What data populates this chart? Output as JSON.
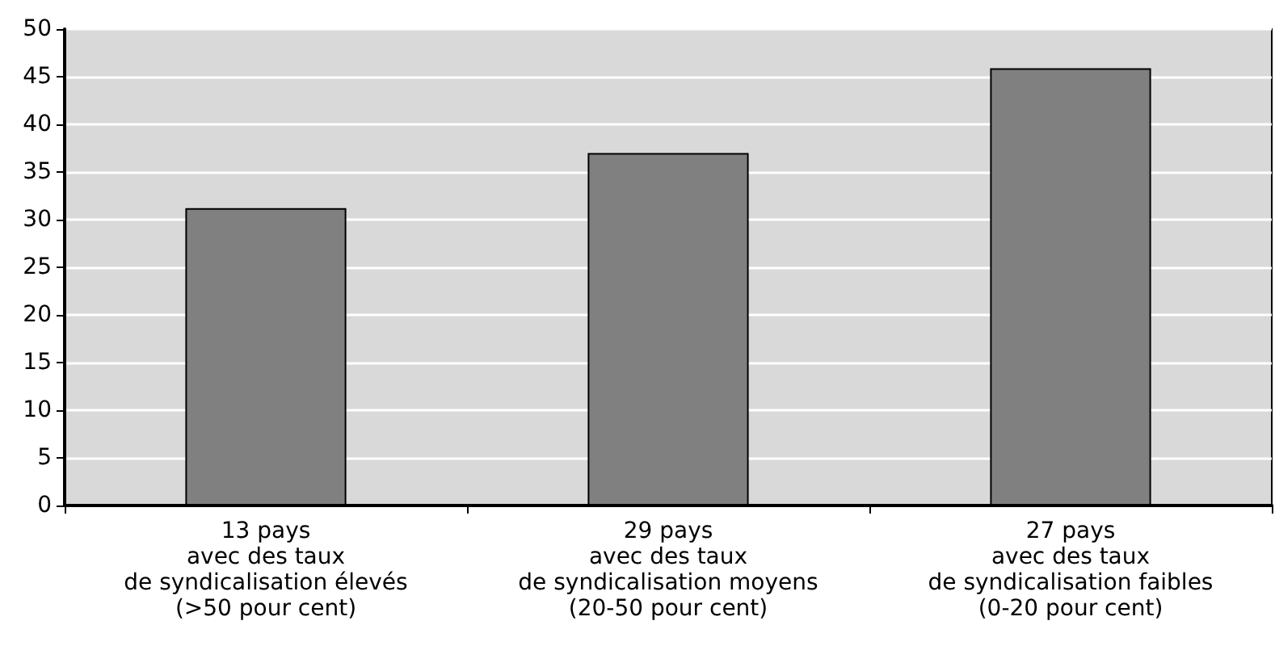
{
  "chart_data": {
    "type": "bar",
    "categories": [
      "13 pays\navec des taux\nde syndicalisation élevés\n(>50 pour cent)",
      "29 pays\navec des taux\nde syndicalisation moyens\n(20-50 pour cent)",
      "27 pays\navec des taux\nde syndicalisation faibles\n(0-20 pour cent)"
    ],
    "values": [
      31.2,
      37,
      45.9
    ],
    "color": "#808080",
    "ylim": [
      0,
      50
    ],
    "yticks": [
      0,
      5,
      10,
      15,
      20,
      25,
      30,
      35,
      40,
      45,
      50
    ],
    "grid": "y"
  }
}
